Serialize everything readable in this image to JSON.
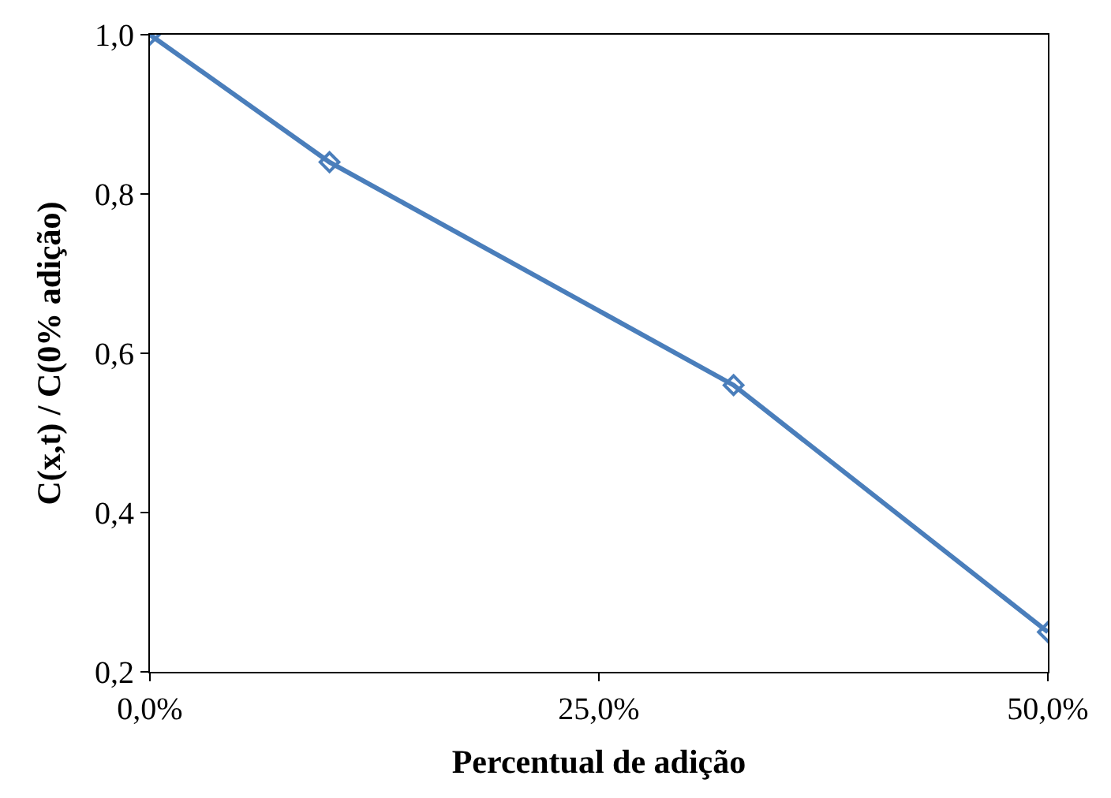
{
  "chart_data": {
    "type": "line",
    "xlabel": "Percentual de adição",
    "ylabel": "C(x,t) / C(0% adição)",
    "x": [
      0,
      10,
      32.5,
      50
    ],
    "series": [
      {
        "color": "#4a7ebb",
        "values": [
          1.0,
          0.84,
          0.56,
          0.25
        ]
      }
    ],
    "xlim": [
      0,
      50
    ],
    "xticks": [
      {
        "value": 0,
        "label": "0,0%"
      },
      {
        "value": 25,
        "label": "25,0%"
      },
      {
        "value": 50,
        "label": "50,0%"
      }
    ],
    "ylim": [
      0.2,
      1.0
    ],
    "yticks": [
      {
        "value": 0.2,
        "label": "0,2"
      },
      {
        "value": 0.4,
        "label": "0,4"
      },
      {
        "value": 0.6,
        "label": "0,6"
      },
      {
        "value": 0.8,
        "label": "0,8"
      },
      {
        "value": 1.0,
        "label": "1,0"
      }
    ],
    "marker": "diamond",
    "line_style": "solid"
  }
}
